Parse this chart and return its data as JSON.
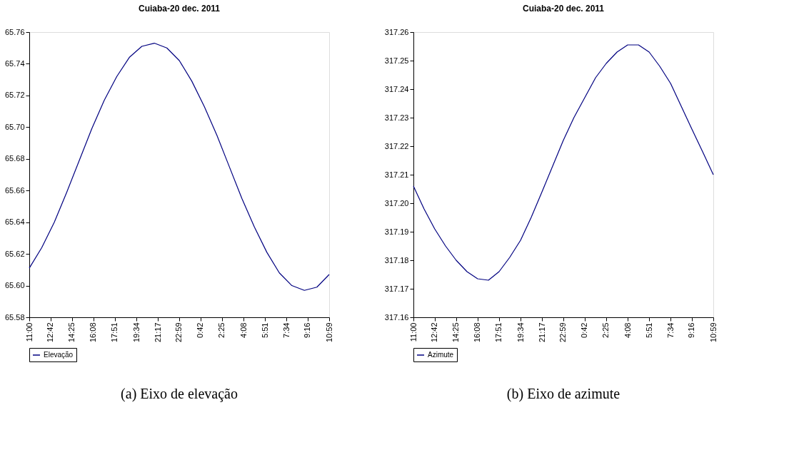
{
  "chart_data": [
    {
      "type": "line",
      "title": "Cuiaba-20 dec. 2011",
      "legend": "bottom",
      "grid": false,
      "marker": "none",
      "line_style": "solid",
      "x": [
        "2011-12-20T11:00",
        "2011-12-20T12:00",
        "2011-12-20T13:00",
        "2011-12-20T14:00",
        "2011-12-20T15:00",
        "2011-12-20T16:00",
        "2011-12-20T17:00",
        "2011-12-20T18:00",
        "2011-12-20T19:00",
        "2011-12-20T20:00",
        "2011-12-20T21:00",
        "2011-12-20T22:00",
        "2011-12-20T23:00",
        "2011-12-21T00:00",
        "2011-12-21T01:00",
        "2011-12-21T02:00",
        "2011-12-21T03:00",
        "2011-12-21T04:00",
        "2011-12-21T05:00",
        "2011-12-21T06:00",
        "2011-12-21T07:00",
        "2011-12-21T08:00",
        "2011-12-21T09:00",
        "2011-12-21T10:00",
        "2011-12-21T10:59"
      ],
      "series": [
        {
          "name": "Elevação",
          "color": "#000080",
          "values": [
            65.611,
            65.624,
            65.64,
            65.659,
            65.679,
            65.699,
            65.717,
            65.732,
            65.744,
            65.751,
            65.753,
            65.75,
            65.742,
            65.729,
            65.713,
            65.695,
            65.675,
            65.655,
            65.637,
            65.621,
            65.608,
            65.6,
            65.597,
            65.599,
            65.607
          ]
        }
      ],
      "xlim": [
        "2011-12-20T11:00",
        "2011-12-21T10:59"
      ],
      "xticks": [
        {
          "value": "2011-12-20T11:00",
          "label": "11:00"
        },
        {
          "value": "2011-12-20T12:42",
          "label": "12:42"
        },
        {
          "value": "2011-12-20T14:25",
          "label": "14:25"
        },
        {
          "value": "2011-12-20T16:08",
          "label": "16:08"
        },
        {
          "value": "2011-12-20T17:51",
          "label": "17:51"
        },
        {
          "value": "2011-12-20T19:34",
          "label": "19:34"
        },
        {
          "value": "2011-12-20T21:17",
          "label": "21:17"
        },
        {
          "value": "2011-12-20T22:59",
          "label": "22:59"
        },
        {
          "value": "2011-12-21T00:42",
          "label": "0:42"
        },
        {
          "value": "2011-12-21T02:25",
          "label": "2:25"
        },
        {
          "value": "2011-12-21T04:08",
          "label": "4:08"
        },
        {
          "value": "2011-12-21T05:51",
          "label": "5:51"
        },
        {
          "value": "2011-12-21T07:34",
          "label": "7:34"
        },
        {
          "value": "2011-12-21T09:16",
          "label": "9:16"
        },
        {
          "value": "2011-12-21T10:59",
          "label": "10:59"
        }
      ],
      "ylim": [
        65.58,
        65.76
      ],
      "yticks": [
        {
          "value": 65.58,
          "label": "65.58"
        },
        {
          "value": 65.6,
          "label": "65.60"
        },
        {
          "value": 65.62,
          "label": "65.62"
        },
        {
          "value": 65.64,
          "label": "65.64"
        },
        {
          "value": 65.66,
          "label": "65.66"
        },
        {
          "value": 65.68,
          "label": "65.68"
        },
        {
          "value": 65.7,
          "label": "65.70"
        },
        {
          "value": 65.72,
          "label": "65.72"
        },
        {
          "value": 65.74,
          "label": "65.74"
        },
        {
          "value": 65.76,
          "label": "65.76"
        }
      ],
      "annotations": [
        "(a) Eixo de elevação"
      ]
    },
    {
      "type": "line",
      "title": "Cuiaba-20 dec. 2011",
      "legend": "bottom",
      "grid": false,
      "marker": "none",
      "line_style": "solid",
      "x": [
        "2011-12-20T11:00",
        "2011-12-20T11:51",
        "2011-12-20T12:42",
        "2011-12-20T13:34",
        "2011-12-20T14:25",
        "2011-12-20T15:17",
        "2011-12-20T16:08",
        "2011-12-20T17:00",
        "2011-12-20T17:51",
        "2011-12-20T18:42",
        "2011-12-20T19:34",
        "2011-12-20T20:25",
        "2011-12-20T21:17",
        "2011-12-20T22:08",
        "2011-12-20T22:59",
        "2011-12-20T23:50",
        "2011-12-21T00:42",
        "2011-12-21T01:34",
        "2011-12-21T02:25",
        "2011-12-21T03:17",
        "2011-12-21T04:08",
        "2011-12-21T05:00",
        "2011-12-21T05:51",
        "2011-12-21T06:42",
        "2011-12-21T07:34",
        "2011-12-21T08:25",
        "2011-12-21T09:16",
        "2011-12-21T10:08",
        "2011-12-21T10:59"
      ],
      "series": [
        {
          "name": "Azimute",
          "color": "#000080",
          "values": [
            317.206,
            317.198,
            317.191,
            317.185,
            317.18,
            317.176,
            317.1735,
            317.173,
            317.176,
            317.181,
            317.187,
            317.195,
            317.204,
            317.213,
            317.222,
            317.23,
            317.237,
            317.244,
            317.249,
            317.253,
            317.2555,
            317.2555,
            317.253,
            317.248,
            317.242,
            317.234,
            317.226,
            317.218,
            317.21
          ]
        }
      ],
      "xlim": [
        "2011-12-20T11:00",
        "2011-12-21T10:59"
      ],
      "xticks": [
        {
          "value": "2011-12-20T11:00",
          "label": "11:00"
        },
        {
          "value": "2011-12-20T12:42",
          "label": "12:42"
        },
        {
          "value": "2011-12-20T14:25",
          "label": "14:25"
        },
        {
          "value": "2011-12-20T16:08",
          "label": "16:08"
        },
        {
          "value": "2011-12-20T17:51",
          "label": "17:51"
        },
        {
          "value": "2011-12-20T19:34",
          "label": "19:34"
        },
        {
          "value": "2011-12-20T21:17",
          "label": "21:17"
        },
        {
          "value": "2011-12-20T22:59",
          "label": "22:59"
        },
        {
          "value": "2011-12-21T00:42",
          "label": "0:42"
        },
        {
          "value": "2011-12-21T02:25",
          "label": "2:25"
        },
        {
          "value": "2011-12-21T04:08",
          "label": "4:08"
        },
        {
          "value": "2011-12-21T05:51",
          "label": "5:51"
        },
        {
          "value": "2011-12-21T07:34",
          "label": "7:34"
        },
        {
          "value": "2011-12-21T09:16",
          "label": "9:16"
        },
        {
          "value": "2011-12-21T10:59",
          "label": "10:59"
        }
      ],
      "ylim": [
        317.16,
        317.26
      ],
      "yticks": [
        {
          "value": 317.16,
          "label": "317.16"
        },
        {
          "value": 317.17,
          "label": "317.17"
        },
        {
          "value": 317.18,
          "label": "317.18"
        },
        {
          "value": 317.19,
          "label": "317.19"
        },
        {
          "value": 317.2,
          "label": "317.20"
        },
        {
          "value": 317.21,
          "label": "317.21"
        },
        {
          "value": 317.22,
          "label": "317.22"
        },
        {
          "value": 317.23,
          "label": "317.23"
        },
        {
          "value": 317.24,
          "label": "317.24"
        },
        {
          "value": 317.25,
          "label": "317.25"
        },
        {
          "value": 317.26,
          "label": "317.26"
        }
      ],
      "annotations": [
        "(b) Eixo de azimute"
      ]
    }
  ]
}
